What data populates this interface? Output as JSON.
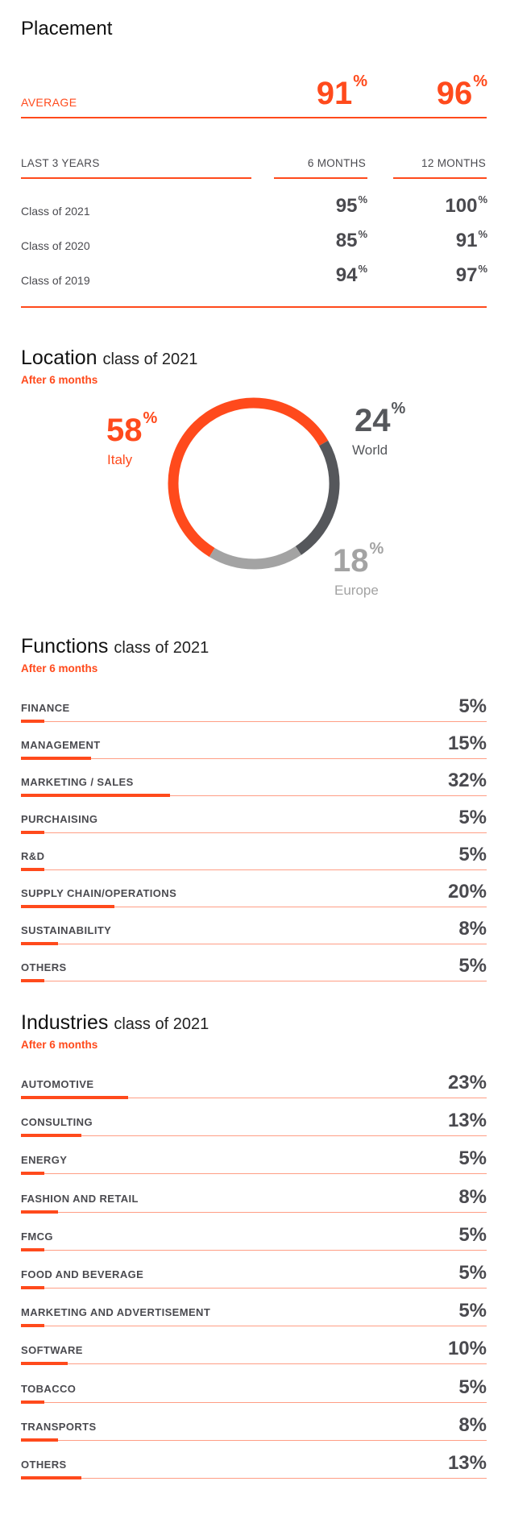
{
  "placement": {
    "title": "Placement",
    "average_label": "AVERAGE",
    "average_6": "91",
    "average_12": "96",
    "pct": "%",
    "last3_label": "LAST 3 YEARS",
    "col6_label": "6 MONTHS",
    "col12_label": "12 MONTHS",
    "rows": [
      {
        "label": "Class of 2021",
        "m6": "95",
        "m12": "100"
      },
      {
        "label": "Class of 2020",
        "m6": "85",
        "m12": "91"
      },
      {
        "label": "Class of 2019",
        "m6": "94",
        "m12": "97"
      }
    ]
  },
  "location": {
    "title": "Location",
    "subtitle": "class of 2021",
    "after": "After 6 months"
  },
  "functions": {
    "title": "Functions",
    "subtitle": "class of 2021",
    "after": "After 6 months"
  },
  "industries": {
    "title": "Industries",
    "subtitle": "class of 2021",
    "after": "After 6 months"
  },
  "chart_data": [
    {
      "type": "pie",
      "title": "Location",
      "slices": [
        {
          "name": "Italy",
          "value": 58,
          "color": "#ff4a1c"
        },
        {
          "name": "World",
          "value": 24,
          "color": "#55575b"
        },
        {
          "name": "Europe",
          "value": 18,
          "color": "#a3a3a3"
        }
      ]
    },
    {
      "type": "bar",
      "title": "Functions",
      "categories": [
        "FINANCE",
        "MANAGEMENT",
        "MARKETING / SALES",
        "PURCHAISING",
        "R&D",
        "SUPPLY CHAIN/OPERATIONS",
        "SUSTAINABILITY",
        "OTHERS"
      ],
      "values": [
        5,
        15,
        32,
        5,
        5,
        20,
        8,
        5
      ],
      "color": "#ff4a1c"
    },
    {
      "type": "bar",
      "title": "Industries",
      "categories": [
        "AUTOMOTIVE",
        "CONSULTING",
        "ENERGY",
        "FASHION AND RETAIL",
        "FMCG",
        "FOOD AND BEVERAGE",
        "MARKETING AND ADVERTISEMENT",
        "SOFTWARE",
        "TOBACCO",
        "TRANSPORTS",
        "OTHERS"
      ],
      "values": [
        23,
        13,
        5,
        8,
        5,
        5,
        5,
        10,
        5,
        8,
        13
      ],
      "color": "#ff4a1c"
    }
  ]
}
